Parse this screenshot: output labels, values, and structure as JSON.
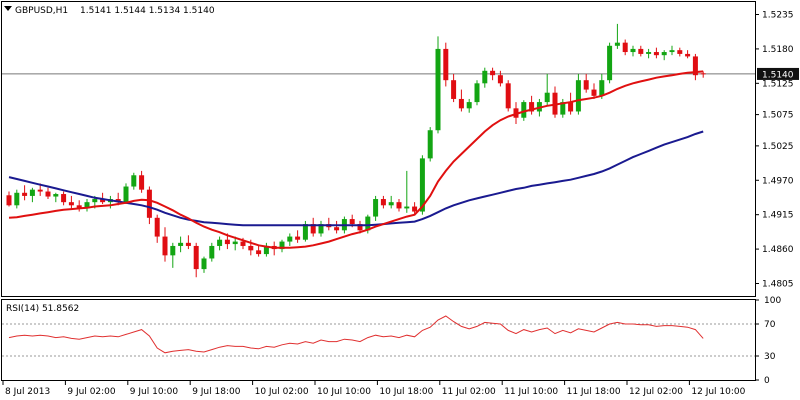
{
  "header": {
    "symbol": "GBPUSD,H1",
    "ohlc": "1.5141 1.5144 1.5134 1.5140",
    "menu_icon": "dropdown-triangle-icon"
  },
  "current_price": {
    "label": "1.5140",
    "value": 1.514
  },
  "rsi_panel": {
    "title": "RSI(14) 51.8562",
    "levels": [
      30,
      70
    ]
  },
  "colors": {
    "bull": "#13a513",
    "bear": "#e00d12",
    "ma_fast": "#e01010",
    "ma_slow": "#1a1a90",
    "rsi": "#e03030",
    "grid": "#999999",
    "price_line": "#777777",
    "price_label_bg": "#111111"
  },
  "chart_data": [
    {
      "type": "candlestick",
      "title": "GBPUSD,H1",
      "ylim": [
        1.4785,
        1.5255
      ],
      "y_ticks": [
        "1.5235",
        "1.5180",
        "1.5125",
        "1.5075",
        "1.5025",
        "1.4970",
        "1.4915",
        "1.4860",
        "1.4805"
      ],
      "x_ticks": [
        "8 Jul 2013",
        "9 Jul 02:00",
        "9 Jul 10:00",
        "9 Jul 18:00",
        "10 Jul 02:00",
        "10 Jul 10:00",
        "10 Jul 18:00",
        "11 Jul 02:00",
        "11 Jul 10:00",
        "11 Jul 18:00",
        "12 Jul 02:00",
        "12 Jul 10:00"
      ],
      "candles": [
        [
          1.4946,
          1.4952,
          1.4928,
          1.493
        ],
        [
          1.493,
          1.4955,
          1.4925,
          1.495
        ],
        [
          1.495,
          1.4962,
          1.4938,
          1.4945
        ],
        [
          1.4945,
          1.4958,
          1.4935,
          1.4955
        ],
        [
          1.4955,
          1.4965,
          1.4945,
          1.4952
        ],
        [
          1.4952,
          1.4958,
          1.494,
          1.4944
        ],
        [
          1.4944,
          1.495,
          1.4935,
          1.4948
        ],
        [
          1.4948,
          1.4952,
          1.493,
          1.4935
        ],
        [
          1.4935,
          1.4945,
          1.4925,
          1.493
        ],
        [
          1.493,
          1.4938,
          1.492,
          1.4925
        ],
        [
          1.4925,
          1.494,
          1.492,
          1.4935
        ],
        [
          1.4935,
          1.4945,
          1.4925,
          1.494
        ],
        [
          1.494,
          1.495,
          1.4932,
          1.4935
        ],
        [
          1.4935,
          1.4945,
          1.4925,
          1.494
        ],
        [
          1.494,
          1.495,
          1.493,
          1.4935
        ],
        [
          1.4935,
          1.4965,
          1.4932,
          1.496
        ],
        [
          1.496,
          1.4982,
          1.4955,
          1.4978
        ],
        [
          1.4978,
          1.4985,
          1.495,
          1.4955
        ],
        [
          1.4955,
          1.496,
          1.49,
          1.491
        ],
        [
          1.491,
          1.4915,
          1.487,
          1.488
        ],
        [
          1.488,
          1.4895,
          1.484,
          1.485
        ],
        [
          1.485,
          1.487,
          1.483,
          1.4865
        ],
        [
          1.4865,
          1.488,
          1.4855,
          1.487
        ],
        [
          1.487,
          1.4882,
          1.486,
          1.4865
        ],
        [
          1.4865,
          1.487,
          1.4815,
          1.4828
        ],
        [
          1.4828,
          1.4848,
          1.4822,
          1.4845
        ],
        [
          1.4845,
          1.487,
          1.484,
          1.4865
        ],
        [
          1.4865,
          1.488,
          1.4858,
          1.4875
        ],
        [
          1.4875,
          1.4885,
          1.486,
          1.4868
        ],
        [
          1.4868,
          1.488,
          1.4858,
          1.4872
        ],
        [
          1.4872,
          1.4878,
          1.486,
          1.4865
        ],
        [
          1.4865,
          1.4875,
          1.485,
          1.4858
        ],
        [
          1.4858,
          1.4865,
          1.4848,
          1.4852
        ],
        [
          1.4852,
          1.487,
          1.4848,
          1.4865
        ],
        [
          1.4865,
          1.4872,
          1.485,
          1.486
        ],
        [
          1.486,
          1.4875,
          1.4855,
          1.4872
        ],
        [
          1.4872,
          1.4885,
          1.4865,
          1.488
        ],
        [
          1.488,
          1.489,
          1.487,
          1.4875
        ],
        [
          1.4875,
          1.4905,
          1.4872,
          1.49
        ],
        [
          1.49,
          1.491,
          1.488,
          1.4885
        ],
        [
          1.4885,
          1.4905,
          1.488,
          1.49
        ],
        [
          1.49,
          1.491,
          1.489,
          1.4895
        ],
        [
          1.4895,
          1.4905,
          1.4885,
          1.489
        ],
        [
          1.489,
          1.4912,
          1.4885,
          1.4908
        ],
        [
          1.4908,
          1.4915,
          1.4895,
          1.49
        ],
        [
          1.49,
          1.4905,
          1.4885,
          1.489
        ],
        [
          1.489,
          1.4915,
          1.4885,
          1.4912
        ],
        [
          1.4912,
          1.4945,
          1.4905,
          1.494
        ],
        [
          1.494,
          1.4945,
          1.4925,
          1.493
        ],
        [
          1.493,
          1.4945,
          1.4925,
          1.4935
        ],
        [
          1.4935,
          1.494,
          1.492,
          1.4925
        ],
        [
          1.4925,
          1.4985,
          1.4918,
          1.4928
        ],
        [
          1.4928,
          1.4935,
          1.4915,
          1.492
        ],
        [
          1.492,
          1.501,
          1.4915,
          1.5005
        ],
        [
          1.5005,
          1.5055,
          1.5,
          1.505
        ],
        [
          1.505,
          1.52,
          1.5045,
          1.518
        ],
        [
          1.518,
          1.519,
          1.512,
          1.513
        ],
        [
          1.513,
          1.514,
          1.5095,
          1.51
        ],
        [
          1.51,
          1.5115,
          1.508,
          1.5085
        ],
        [
          1.5085,
          1.51,
          1.5078,
          1.5095
        ],
        [
          1.5095,
          1.513,
          1.509,
          1.5125
        ],
        [
          1.5125,
          1.515,
          1.5118,
          1.5145
        ],
        [
          1.5145,
          1.515,
          1.513,
          1.5138
        ],
        [
          1.5138,
          1.5145,
          1.512,
          1.5125
        ],
        [
          1.5125,
          1.513,
          1.508,
          1.5085
        ],
        [
          1.5085,
          1.5095,
          1.506,
          1.507
        ],
        [
          1.507,
          1.5098,
          1.5065,
          1.5095
        ],
        [
          1.5095,
          1.5105,
          1.5075,
          1.508
        ],
        [
          1.508,
          1.51,
          1.5072,
          1.5095
        ],
        [
          1.5095,
          1.514,
          1.509,
          1.511
        ],
        [
          1.511,
          1.512,
          1.507,
          1.5075
        ],
        [
          1.5075,
          1.51,
          1.507,
          1.5095
        ],
        [
          1.5095,
          1.511,
          1.5075,
          1.508
        ],
        [
          1.508,
          1.514,
          1.5075,
          1.513
        ],
        [
          1.513,
          1.514,
          1.511,
          1.5115
        ],
        [
          1.5115,
          1.5125,
          1.51,
          1.5105
        ],
        [
          1.5105,
          1.514,
          1.51,
          1.513
        ],
        [
          1.513,
          1.519,
          1.5125,
          1.5185
        ],
        [
          1.5185,
          1.522,
          1.518,
          1.519
        ],
        [
          1.519,
          1.5195,
          1.517,
          1.5175
        ],
        [
          1.5175,
          1.5185,
          1.5168,
          1.518
        ],
        [
          1.518,
          1.5185,
          1.5168,
          1.5172
        ],
        [
          1.5172,
          1.518,
          1.5165,
          1.5175
        ],
        [
          1.5175,
          1.5182,
          1.5165,
          1.517
        ],
        [
          1.517,
          1.5178,
          1.5162,
          1.5175
        ],
        [
          1.5175,
          1.5185,
          1.517,
          1.5178
        ],
        [
          1.5178,
          1.5182,
          1.5168,
          1.5172
        ],
        [
          1.5172,
          1.5178,
          1.5165,
          1.5168
        ],
        [
          1.5168,
          1.5172,
          1.513,
          1.5138
        ],
        [
          1.5141,
          1.5144,
          1.5134,
          1.514
        ]
      ],
      "ma_fast": [
        1.491,
        1.4911,
        1.4913,
        1.4915,
        1.4917,
        1.4919,
        1.4921,
        1.4923,
        1.4924,
        1.4925,
        1.4926,
        1.4928,
        1.4929,
        1.493,
        1.4932,
        1.4934,
        1.4937,
        1.4939,
        1.4938,
        1.4934,
        1.4928,
        1.4922,
        1.4915,
        1.4909,
        1.4902,
        1.4896,
        1.4891,
        1.4887,
        1.4882,
        1.4878,
        1.4874,
        1.487,
        1.4866,
        1.4864,
        1.4862,
        1.4862,
        1.4862,
        1.4863,
        1.4864,
        1.4866,
        1.4869,
        1.4872,
        1.4876,
        1.488,
        1.4884,
        1.4887,
        1.4891,
        1.4896,
        1.49,
        1.4904,
        1.4908,
        1.4912,
        1.4915,
        1.4928,
        1.4945,
        1.4968,
        1.4985,
        1.5,
        1.5012,
        1.5024,
        1.5036,
        1.5048,
        1.5058,
        1.5066,
        1.5072,
        1.5076,
        1.508,
        1.5083,
        1.5086,
        1.5089,
        1.5091,
        1.5093,
        1.5095,
        1.5098,
        1.51,
        1.5102,
        1.5105,
        1.511,
        1.5116,
        1.5121,
        1.5125,
        1.5128,
        1.5131,
        1.5134,
        1.5136,
        1.5138,
        1.514,
        1.5142,
        1.5143,
        1.5144
      ],
      "ma_slow": [
        1.4975,
        1.4972,
        1.4969,
        1.4966,
        1.4963,
        1.496,
        1.4957,
        1.4954,
        1.4951,
        1.4948,
        1.4945,
        1.4942,
        1.494,
        1.4938,
        1.4936,
        1.4934,
        1.4932,
        1.493,
        1.4927,
        1.4923,
        1.4918,
        1.4914,
        1.491,
        1.4907,
        1.4905,
        1.4903,
        1.4902,
        1.4901,
        1.49,
        1.4899,
        1.4898,
        1.4898,
        1.4898,
        1.4898,
        1.4898,
        1.4898,
        1.4898,
        1.4898,
        1.4898,
        1.4898,
        1.4898,
        1.4898,
        1.4898,
        1.4898,
        1.4898,
        1.4898,
        1.4898,
        1.4899,
        1.49,
        1.4901,
        1.4902,
        1.4903,
        1.4904,
        1.4908,
        1.4913,
        1.4919,
        1.4925,
        1.493,
        1.4934,
        1.4938,
        1.4941,
        1.4944,
        1.4947,
        1.495,
        1.4953,
        1.4956,
        1.4958,
        1.4961,
        1.4963,
        1.4965,
        1.4967,
        1.4969,
        1.4971,
        1.4974,
        1.4977,
        1.498,
        1.4984,
        1.4989,
        1.4995,
        1.5001,
        1.5007,
        1.5012,
        1.5017,
        1.5022,
        1.5027,
        1.5031,
        1.5035,
        1.5039,
        1.5044,
        1.5048
      ]
    },
    {
      "type": "line",
      "title": "RSI(14) 51.8562",
      "ylim": [
        0,
        100
      ],
      "y_ticks": [
        "100",
        "70",
        "30",
        "0"
      ],
      "series": [
        {
          "values": [
            53,
            55,
            56,
            55,
            56,
            55,
            53,
            54,
            52,
            51,
            53,
            55,
            54,
            55,
            54,
            57,
            60,
            63,
            55,
            40,
            34,
            36,
            37,
            38,
            36,
            35,
            38,
            41,
            43,
            42,
            42,
            40,
            39,
            42,
            41,
            44,
            46,
            45,
            48,
            46,
            50,
            48,
            48,
            51,
            50,
            48,
            53,
            56,
            54,
            55,
            53,
            56,
            54,
            62,
            66,
            75,
            80,
            73,
            67,
            64,
            67,
            72,
            71,
            70,
            62,
            58,
            63,
            60,
            63,
            65,
            58,
            62,
            59,
            64,
            62,
            60,
            65,
            70,
            72,
            70,
            70,
            69,
            69,
            67,
            68,
            68,
            67,
            66,
            63,
            52
          ]
        }
      ]
    }
  ]
}
